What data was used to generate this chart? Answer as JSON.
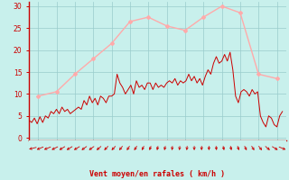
{
  "xlabel": "Vent moyen/en rafales ( km/h )",
  "bg_color": "#c8f0ec",
  "grid_color": "#99cccc",
  "spine_color": "#cc0000",
  "xlim": [
    9.5,
    23.5
  ],
  "ylim": [
    -0.5,
    31
  ],
  "xticks": [
    10,
    11,
    12,
    13,
    14,
    15,
    16,
    17,
    18,
    19,
    20,
    21,
    22,
    23
  ],
  "yticks": [
    0,
    5,
    10,
    15,
    20,
    25,
    30
  ],
  "smooth_x": [
    10,
    11,
    12,
    13,
    14,
    15,
    16,
    17,
    18,
    19,
    20,
    21,
    22,
    23
  ],
  "smooth_y": [
    9.5,
    10.5,
    14.5,
    18.0,
    21.5,
    26.5,
    27.5,
    25.5,
    24.5,
    27.5,
    30.0,
    28.5,
    14.5,
    13.5
  ],
  "noisy_x": [
    9.5,
    9.65,
    9.8,
    9.95,
    10.1,
    10.25,
    10.4,
    10.55,
    10.7,
    10.85,
    11.0,
    11.15,
    11.3,
    11.45,
    11.6,
    11.75,
    11.9,
    12.05,
    12.2,
    12.35,
    12.5,
    12.65,
    12.8,
    12.95,
    13.1,
    13.25,
    13.4,
    13.55,
    13.7,
    13.85,
    14.0,
    14.15,
    14.3,
    14.45,
    14.6,
    14.75,
    14.9,
    15.05,
    15.2,
    15.35,
    15.5,
    15.65,
    15.8,
    15.95,
    16.1,
    16.25,
    16.4,
    16.55,
    16.7,
    16.85,
    17.0,
    17.15,
    17.3,
    17.45,
    17.6,
    17.75,
    17.9,
    18.05,
    18.2,
    18.35,
    18.5,
    18.65,
    18.8,
    18.95,
    19.1,
    19.25,
    19.4,
    19.55,
    19.7,
    19.85,
    20.0,
    20.15,
    20.3,
    20.45,
    20.6,
    20.75,
    20.9,
    21.05,
    21.2,
    21.35,
    21.5,
    21.65,
    21.8,
    21.95,
    22.1,
    22.25,
    22.4,
    22.55,
    22.7,
    22.85,
    23.0,
    23.15,
    23.3
  ],
  "noisy_y": [
    4.0,
    3.5,
    4.5,
    3.2,
    4.8,
    3.5,
    5.0,
    4.5,
    6.0,
    5.5,
    6.5,
    5.5,
    7.0,
    6.0,
    6.5,
    5.5,
    6.0,
    6.5,
    7.0,
    6.5,
    8.5,
    7.5,
    9.5,
    8.0,
    9.0,
    7.5,
    9.5,
    9.0,
    8.0,
    9.5,
    9.5,
    10.0,
    14.5,
    12.5,
    11.5,
    10.0,
    11.0,
    12.0,
    10.0,
    13.0,
    11.5,
    12.0,
    11.0,
    12.5,
    12.5,
    11.0,
    12.5,
    11.5,
    12.0,
    11.5,
    12.5,
    13.0,
    12.5,
    13.5,
    12.0,
    13.0,
    12.5,
    13.0,
    14.5,
    13.0,
    14.0,
    12.5,
    13.5,
    12.0,
    14.0,
    15.5,
    14.5,
    17.0,
    18.5,
    17.0,
    17.5,
    19.0,
    17.5,
    19.5,
    15.5,
    9.5,
    8.0,
    10.5,
    11.0,
    10.5,
    9.5,
    11.0,
    10.0,
    10.5,
    5.0,
    3.5,
    2.5,
    5.0,
    4.5,
    3.0,
    2.5,
    5.0,
    6.0
  ],
  "smooth_color": "#ffaaaa",
  "noisy_color": "#cc0000",
  "font_color": "#cc0000",
  "arrow_angles": [
    200,
    210,
    210,
    215,
    220,
    220,
    220,
    225,
    225,
    230,
    235,
    235,
    240,
    245,
    245,
    250,
    255,
    260,
    260,
    265,
    265,
    265,
    270,
    270,
    270,
    275,
    280,
    280,
    285,
    290,
    295,
    300,
    310,
    320,
    330
  ]
}
